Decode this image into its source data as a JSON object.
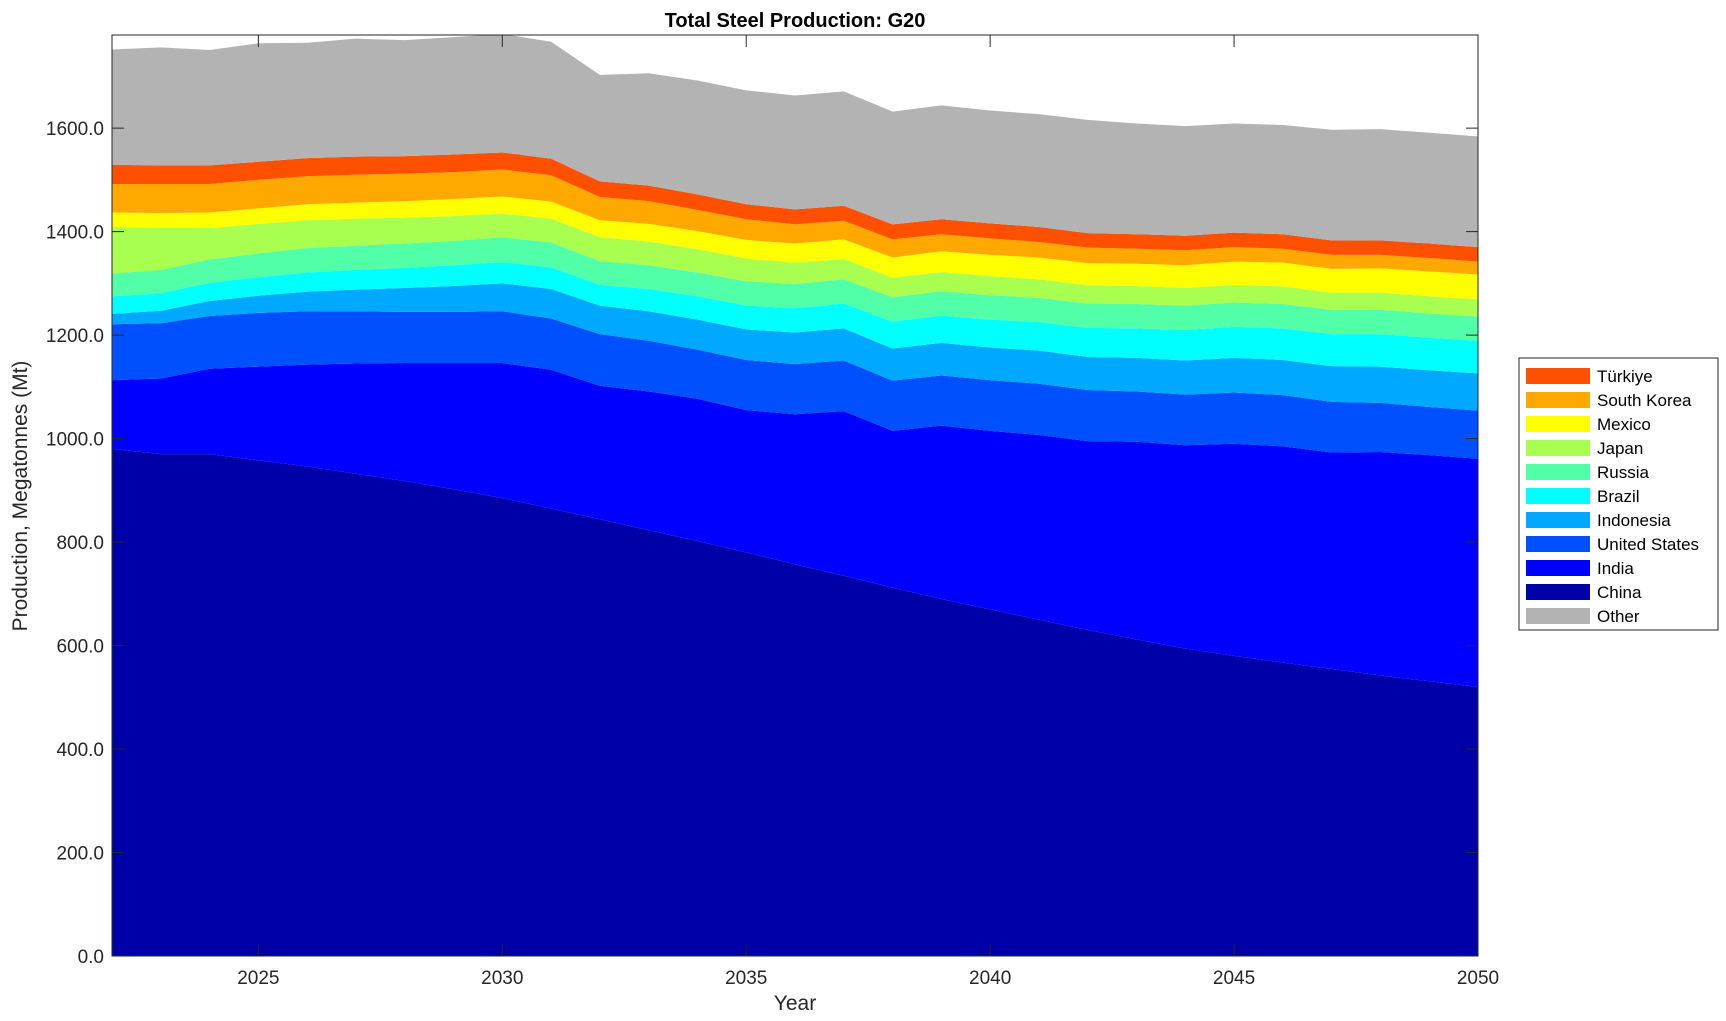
{
  "chart_data": {
    "type": "area",
    "stacked": true,
    "title": "Total Steel Production: G20",
    "xlabel": "Year",
    "ylabel": "Production, Megatonnes (Mt)",
    "xlim": [
      2022,
      2050
    ],
    "ylim": [
      0,
      1780
    ],
    "xticks": [
      2025,
      2030,
      2035,
      2040,
      2045,
      2050
    ],
    "yticks": [
      0,
      200,
      400,
      600,
      800,
      1000,
      1200,
      1400,
      1600
    ],
    "ytick_labels": [
      "0.0",
      "200.0",
      "400.0",
      "600.0",
      "800.0",
      "1000.0",
      "1200.0",
      "1400.0",
      "1600.0"
    ],
    "grid": false,
    "legend_position": "outside-right",
    "x": [
      2022,
      2023,
      2024,
      2025,
      2026,
      2027,
      2028,
      2029,
      2030,
      2031,
      2032,
      2033,
      2034,
      2035,
      2036,
      2037,
      2038,
      2039,
      2040,
      2041,
      2042,
      2043,
      2044,
      2045,
      2046,
      2047,
      2048,
      2049,
      2050
    ],
    "series": [
      {
        "name": "China",
        "color": "#0000A8",
        "values": [
          980,
          970,
          970,
          958,
          946,
          932,
          918,
          902,
          885,
          865,
          844,
          823,
          802,
          780,
          757,
          735,
          712,
          690,
          670,
          650,
          630,
          612,
          594,
          580,
          567,
          555,
          542,
          531,
          520
        ]
      },
      {
        "name": "India",
        "color": "#0000FF",
        "values": [
          133,
          146,
          165,
          181,
          197,
          213,
          228,
          244,
          261,
          268,
          258,
          268,
          275,
          275,
          290,
          318,
          303,
          335,
          345,
          357,
          365,
          382,
          393,
          410,
          418,
          418,
          432,
          437,
          441
        ]
      },
      {
        "name": "United States",
        "color": "#0050FF",
        "values": [
          108,
          107,
          102,
          104,
          103,
          101,
          99,
          99,
          100,
          99,
          100,
          98,
          95,
          97,
          97,
          98,
          97,
          97,
          98,
          99,
          99,
          97,
          98,
          99,
          99,
          98,
          95,
          93,
          93
        ]
      },
      {
        "name": "Indonesia",
        "color": "#00A8FF",
        "values": [
          20,
          24,
          29,
          33,
          38,
          42,
          46,
          50,
          54,
          57,
          55,
          57,
          58,
          59,
          61,
          62,
          62,
          63,
          63,
          64,
          64,
          65,
          66,
          67,
          68,
          69,
          70,
          71,
          72
        ]
      },
      {
        "name": "Brazil",
        "color": "#00FFFF",
        "values": [
          34,
          34,
          35,
          36,
          37,
          38,
          39,
          40,
          41,
          42,
          40,
          43,
          45,
          46,
          47,
          48,
          52,
          53,
          54,
          55,
          56,
          57,
          59,
          60,
          61,
          62,
          63,
          63,
          63
        ]
      },
      {
        "name": "Russia",
        "color": "#50FFA8",
        "values": [
          44,
          45,
          45,
          46,
          47,
          47,
          47,
          47,
          48,
          48,
          46,
          46,
          46,
          47,
          47,
          47,
          47,
          47,
          47,
          47,
          47,
          47,
          47,
          47,
          47,
          47,
          47,
          47,
          47
        ]
      },
      {
        "name": "Japan",
        "color": "#A8FF50",
        "values": [
          90,
          81,
          61,
          57,
          54,
          52,
          50,
          48,
          46,
          46,
          46,
          46,
          45,
          44,
          41,
          39,
          38,
          37,
          37,
          36,
          35,
          35,
          34,
          34,
          34,
          33,
          33,
          33,
          33
        ]
      },
      {
        "name": "Mexico",
        "color": "#FFFF00",
        "values": [
          28,
          29,
          30,
          30,
          31,
          31,
          32,
          33,
          33,
          33,
          33,
          34,
          35,
          36,
          37,
          38,
          39,
          40,
          41,
          42,
          43,
          43,
          44,
          45,
          46,
          46,
          47,
          48,
          48
        ]
      },
      {
        "name": "South Korea",
        "color": "#FFA800",
        "values": [
          55,
          56,
          55,
          55,
          54,
          54,
          53,
          52,
          52,
          51,
          45,
          44,
          41,
          40,
          37,
          36,
          35,
          33,
          32,
          30,
          30,
          29,
          29,
          28,
          27,
          27,
          26,
          26,
          25
        ]
      },
      {
        "name": "Türkiye",
        "color": "#FF5000",
        "values": [
          37,
          36,
          36,
          35,
          35,
          35,
          34,
          34,
          33,
          32,
          30,
          30,
          30,
          29,
          29,
          29,
          29,
          29,
          29,
          29,
          28,
          28,
          28,
          28,
          28,
          28,
          28,
          28,
          28
        ]
      },
      {
        "name": "Other",
        "color": "#B3B3B3",
        "values": [
          223,
          228,
          223,
          229,
          223,
          228,
          224,
          227,
          229,
          226,
          206,
          217,
          220,
          220,
          220,
          221,
          218,
          220,
          218,
          218,
          219,
          214,
          212,
          211,
          211,
          214,
          215,
          214,
          214
        ]
      }
    ],
    "legend_order": [
      "Türkiye",
      "South Korea",
      "Mexico",
      "Japan",
      "Russia",
      "Brazil",
      "Indonesia",
      "United States",
      "India",
      "China",
      "Other"
    ]
  }
}
